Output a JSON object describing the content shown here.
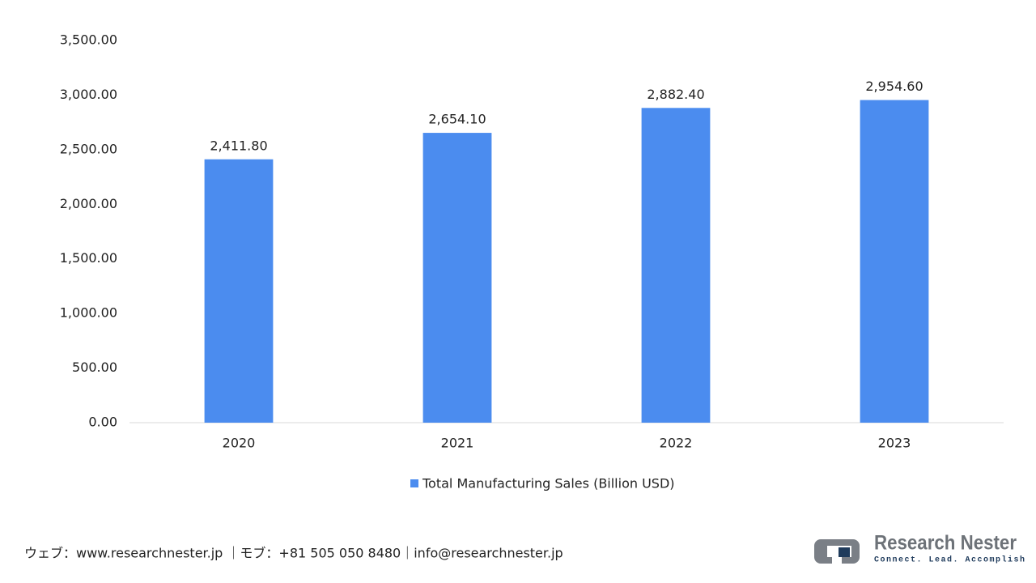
{
  "chart_data": {
    "type": "bar",
    "categories": [
      "2020",
      "2021",
      "2022",
      "2023"
    ],
    "series": [
      {
        "name": "Total Manufacturing Sales (Billion USD)",
        "color": "#4b8cef",
        "values": [
          2411.8,
          2654.1,
          2882.4,
          2954.6
        ],
        "value_labels": [
          "2,411.80",
          "2,654.10",
          "2,882.40",
          "2,954.60"
        ]
      }
    ],
    "ylim": [
      0,
      3500
    ],
    "yticks": [
      {
        "value": 0,
        "label": "0.00"
      },
      {
        "value": 500,
        "label": "500.00"
      },
      {
        "value": 1000,
        "label": "1,000.00"
      },
      {
        "value": 1500,
        "label": "1,500.00"
      },
      {
        "value": 2000,
        "label": "2,000.00"
      },
      {
        "value": 2500,
        "label": "2,500.00"
      },
      {
        "value": 3000,
        "label": "3,000.00"
      },
      {
        "value": 3500,
        "label": "3,500.00"
      }
    ],
    "grid": false,
    "legend": "bottom"
  },
  "footer": {
    "contact": "ウェブ：www.researchnester.jp ｜モブ：+81 505 050 8480｜info@researchnester.jp"
  },
  "logo": {
    "name": "Research Nester",
    "tagline": "Connect. Lead. Accomplish"
  }
}
